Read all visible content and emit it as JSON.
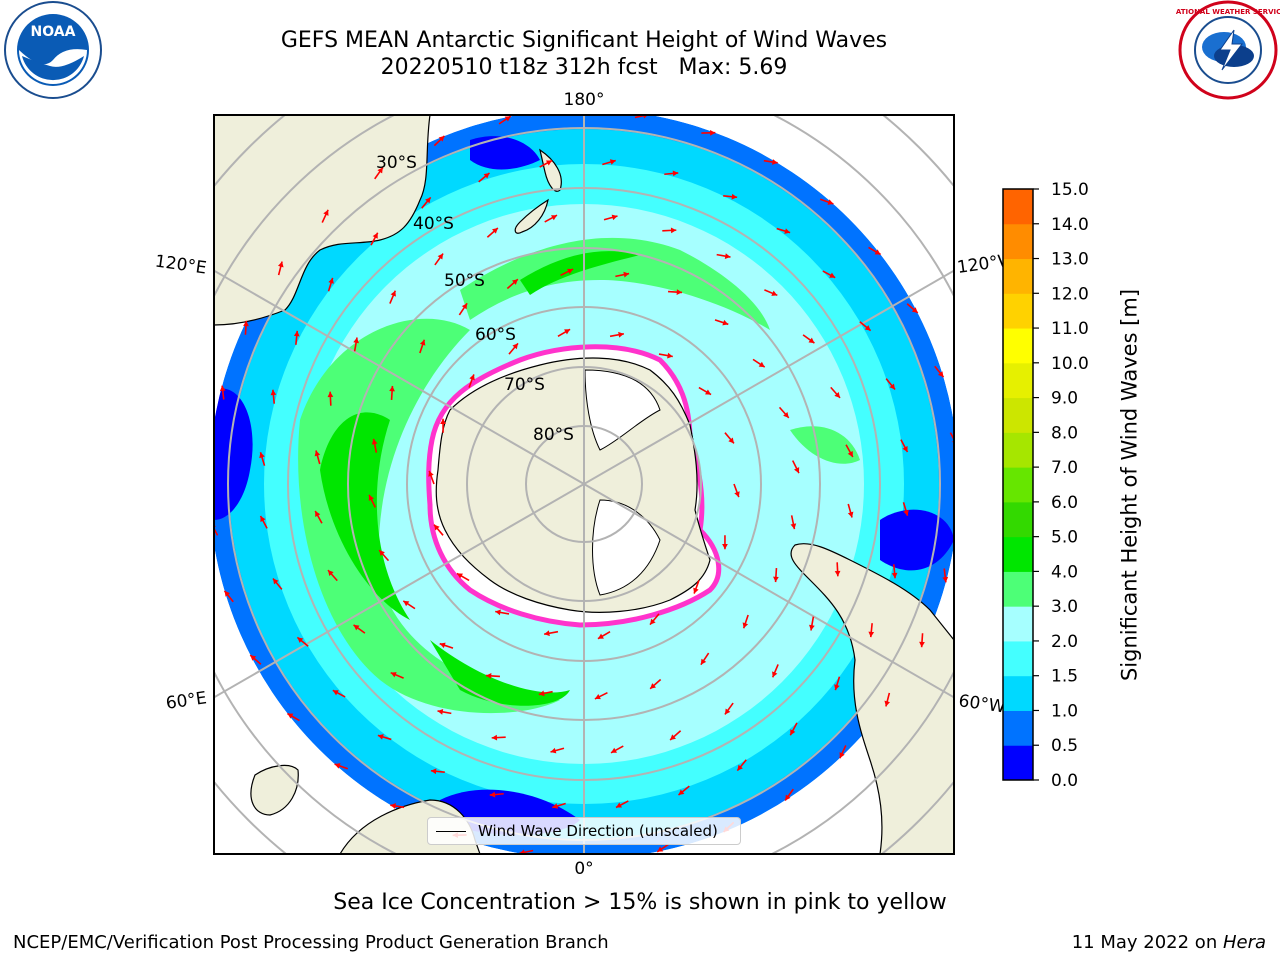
{
  "title": {
    "line1": "GEFS MEAN Antarctic Significant Height of Wind Waves",
    "line2": "20220510 t18z 312h fcst   Max: 5.69"
  },
  "map": {
    "projection": "south-polar-stereographic",
    "longitude_labels": {
      "top": "180°",
      "bottom": "0°",
      "upper_left": "120°E",
      "upper_right": "120°W",
      "lower_left": "60°E",
      "lower_right": "60°W"
    },
    "latitude_labels": [
      "30°S",
      "40°S",
      "50°S",
      "60°S",
      "70°S",
      "80°S"
    ],
    "colors": {
      "land": "#efefdb",
      "ice_mask": "#ffffff",
      "sea_ice_edge": "#ff33cc",
      "gridline": "#b3b3b3",
      "arrow": "#ff0000"
    },
    "legend": {
      "label": "Wind Wave Direction (unscaled)"
    }
  },
  "colorbar": {
    "label": "Significant Height of Wind Waves [m]",
    "ticks": [
      "0.0",
      "0.5",
      "1.0",
      "1.5",
      "2.0",
      "3.0",
      "4.0",
      "5.0",
      "6.0",
      "7.0",
      "8.0",
      "9.0",
      "10.0",
      "11.0",
      "12.0",
      "13.0",
      "14.0",
      "15.0"
    ],
    "colors": [
      "#0000ff",
      "#0073ff",
      "#00d9ff",
      "#44ffff",
      "#a6ffff",
      "#4dff77",
      "#00e600",
      "#33d900",
      "#66e600",
      "#a6e600",
      "#cce600",
      "#e6f000",
      "#ffff00",
      "#ffd200",
      "#ffb400",
      "#ff8c00",
      "#ff6400",
      "#ff3200",
      "#ff0000"
    ]
  },
  "sea_ice_note": "Sea Ice Concentration > 15% is shown in pink to yellow",
  "footer": {
    "left": "NCEP/EMC/Verification Post Processing Product Generation Branch",
    "right_date": "11 May 2022 on ",
    "right_machine": "Hera"
  },
  "logos": {
    "noaa": {
      "text": "NOAA"
    },
    "nws": {
      "text": "NATIONAL WEATHER SERVICE"
    }
  }
}
